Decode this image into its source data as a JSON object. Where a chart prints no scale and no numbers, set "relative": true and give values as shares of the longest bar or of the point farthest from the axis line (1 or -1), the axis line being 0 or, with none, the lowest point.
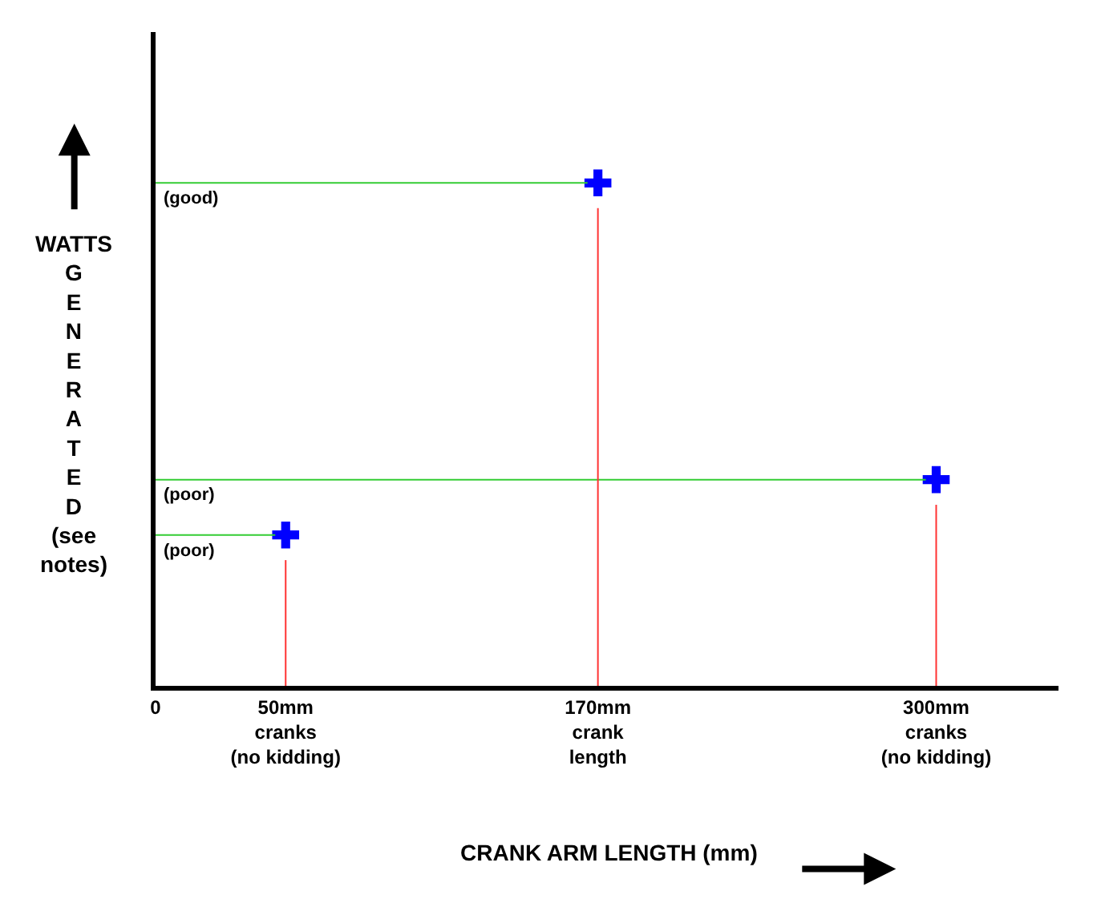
{
  "chart_data": {
    "type": "scatter",
    "relative": true,
    "xlabel": "CRANK ARM LENGTH (mm)",
    "ylabel": "WATTS GENERATED (see notes)",
    "x": [
      50,
      170,
      300
    ],
    "series": [
      {
        "color": "#0000ff",
        "values": [
          0.3,
          1,
          0.41
        ]
      }
    ],
    "marker": "cross",
    "xlim": [
      0,
      347
    ],
    "xticks": [
      {
        "value": 0,
        "label": "0"
      },
      {
        "value": 50,
        "label": "50mm\ncranks\n(no kidding)"
      },
      {
        "value": 170,
        "label": "170mm\ncrank\nlength"
      },
      {
        "value": 300,
        "label": "300mm\ncranks\n(no kidding)"
      }
    ],
    "ref_lines": [
      {
        "axis": "y",
        "value": 1,
        "label": "(good)",
        "color": "#33cc33"
      },
      {
        "axis": "y",
        "value": 0.41,
        "label": "(poor)",
        "color": "#33cc33"
      },
      {
        "axis": "y",
        "value": 0.3,
        "label": "(poor)",
        "color": "#33cc33"
      },
      {
        "axis": "x",
        "value": 50,
        "color": "#ff3333"
      },
      {
        "axis": "x",
        "value": 170,
        "color": "#ff3333"
      },
      {
        "axis": "x",
        "value": 300,
        "color": "#ff3333"
      }
    ]
  }
}
